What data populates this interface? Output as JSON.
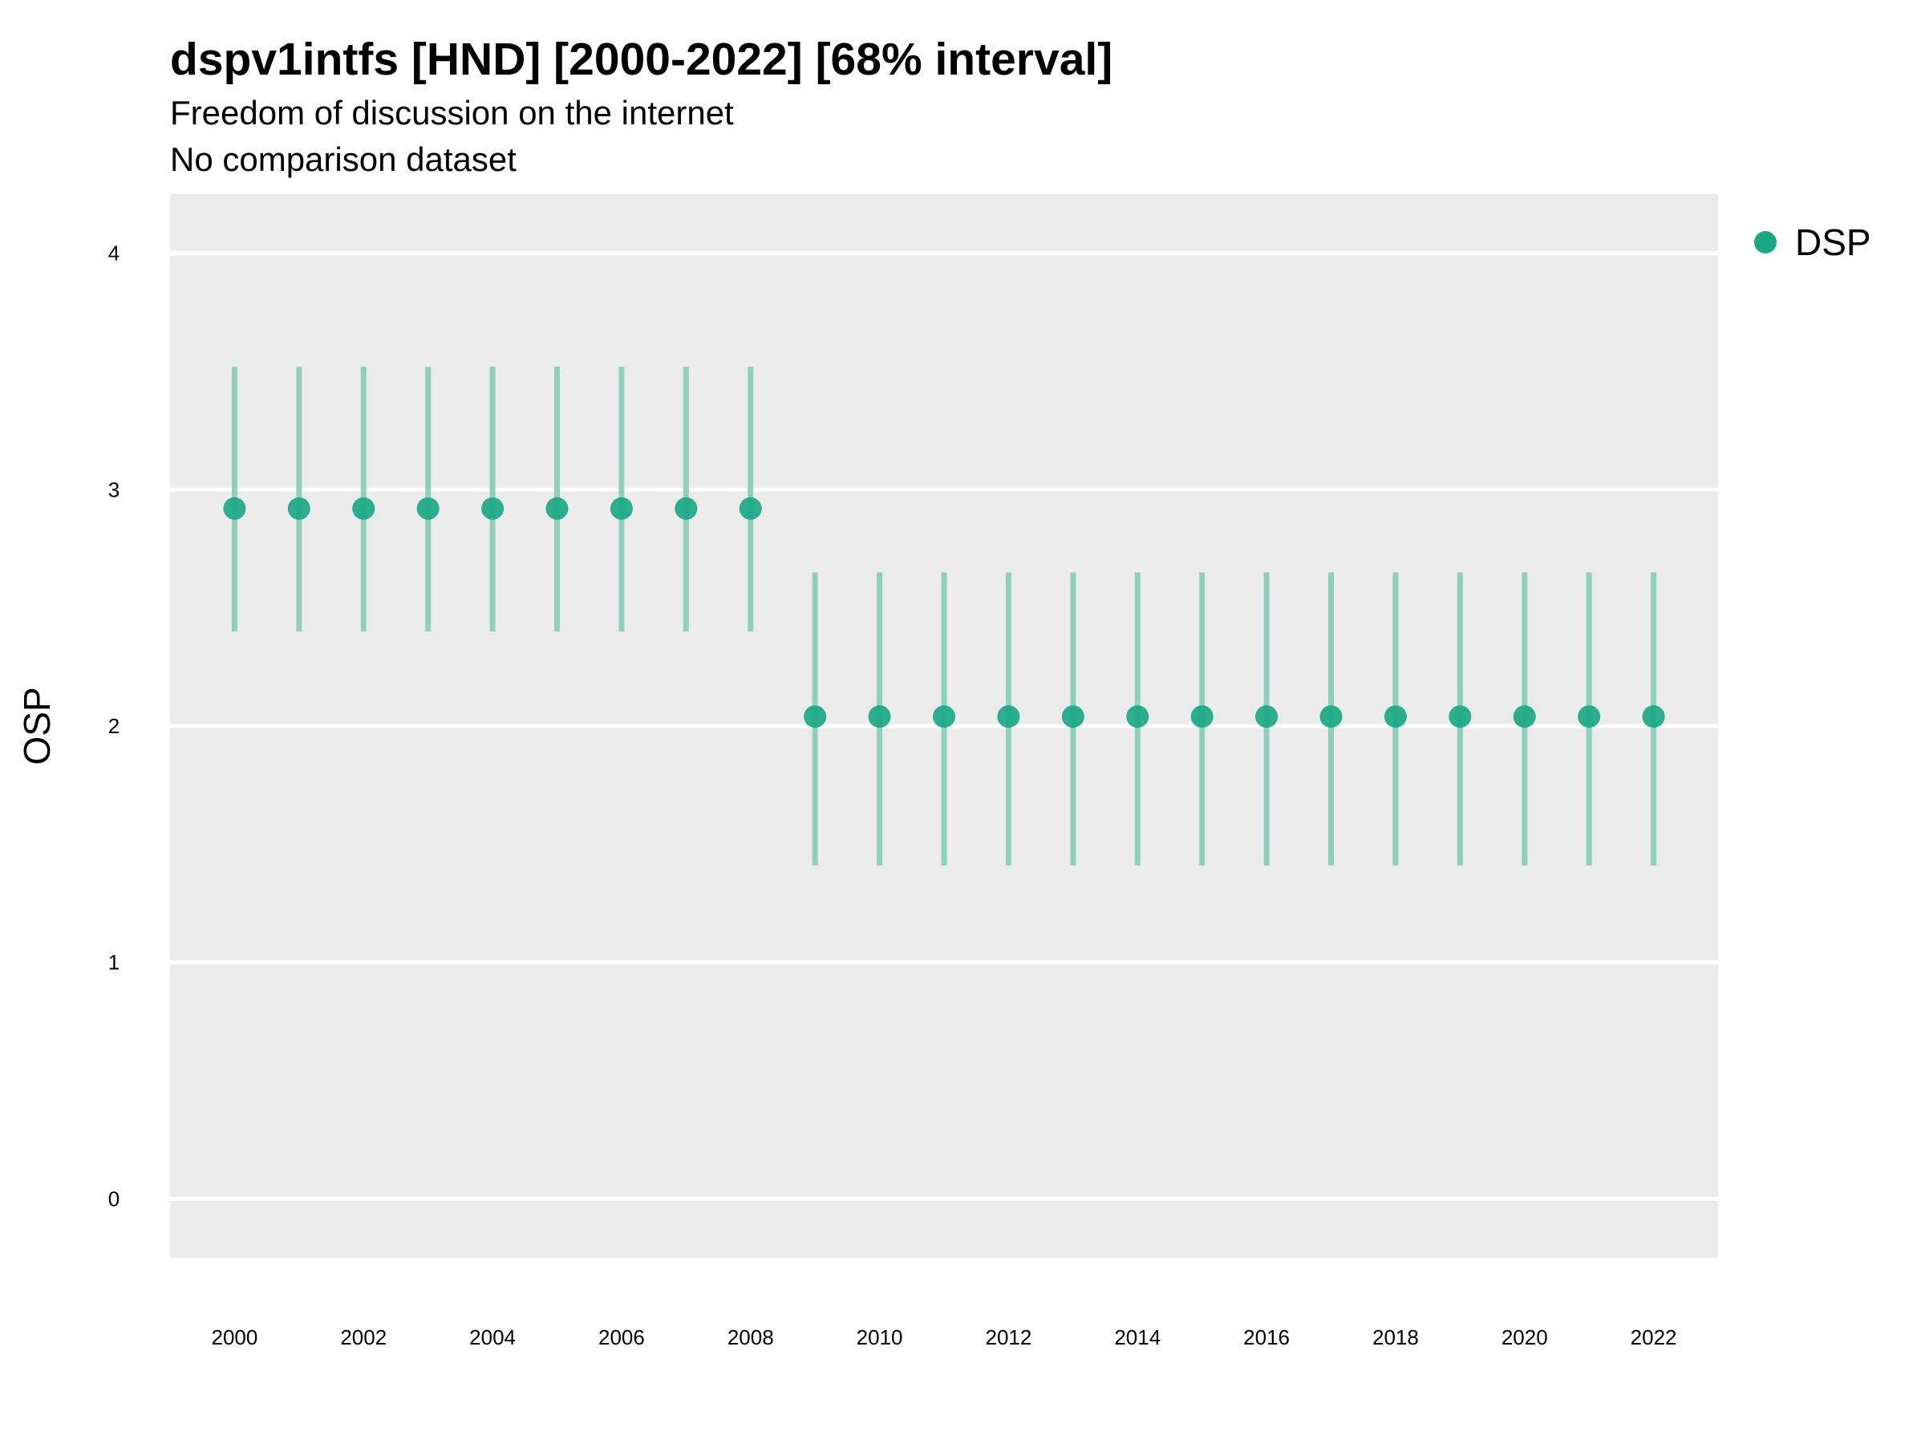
{
  "chart_data": {
    "type": "scatter",
    "title": "dspv1intfs [HND] [2000-2022] [68% interval]",
    "subtitle": "Freedom of discussion on the internet",
    "subtitle2": "No comparison dataset",
    "ylabel": "OSP",
    "xlabel": "",
    "ylim": [
      -0.25,
      4.25
    ],
    "xlim": [
      1999,
      2023
    ],
    "yticks": [
      0,
      1,
      2,
      3,
      4
    ],
    "xticks": [
      2000,
      2002,
      2004,
      2006,
      2008,
      2010,
      2012,
      2014,
      2016,
      2018,
      2020,
      2022
    ],
    "grid": true,
    "legend": {
      "position": "right",
      "entries": [
        "DSP"
      ]
    },
    "colors": {
      "point": "#1ba784",
      "interval": "#8fd0bc",
      "panel": "#ebebeb",
      "grid": "#ffffff"
    },
    "series": [
      {
        "name": "DSP",
        "x": [
          2000,
          2001,
          2002,
          2003,
          2004,
          2005,
          2006,
          2007,
          2008,
          2009,
          2010,
          2011,
          2012,
          2013,
          2014,
          2015,
          2016,
          2017,
          2018,
          2019,
          2020,
          2021,
          2022
        ],
        "y": [
          2.92,
          2.92,
          2.92,
          2.92,
          2.92,
          2.92,
          2.92,
          2.92,
          2.92,
          2.04,
          2.04,
          2.04,
          2.04,
          2.04,
          2.04,
          2.04,
          2.04,
          2.04,
          2.04,
          2.04,
          2.04,
          2.04,
          2.04
        ],
        "lower": [
          2.4,
          2.4,
          2.4,
          2.4,
          2.4,
          2.4,
          2.4,
          2.4,
          2.4,
          1.41,
          1.41,
          1.41,
          1.41,
          1.41,
          1.41,
          1.41,
          1.41,
          1.41,
          1.41,
          1.41,
          1.41,
          1.41,
          1.41
        ],
        "upper": [
          3.52,
          3.52,
          3.52,
          3.52,
          3.52,
          3.52,
          3.52,
          3.52,
          3.52,
          2.65,
          2.65,
          2.65,
          2.65,
          2.65,
          2.65,
          2.65,
          2.65,
          2.65,
          2.65,
          2.65,
          2.65,
          2.65,
          2.65
        ]
      }
    ]
  }
}
